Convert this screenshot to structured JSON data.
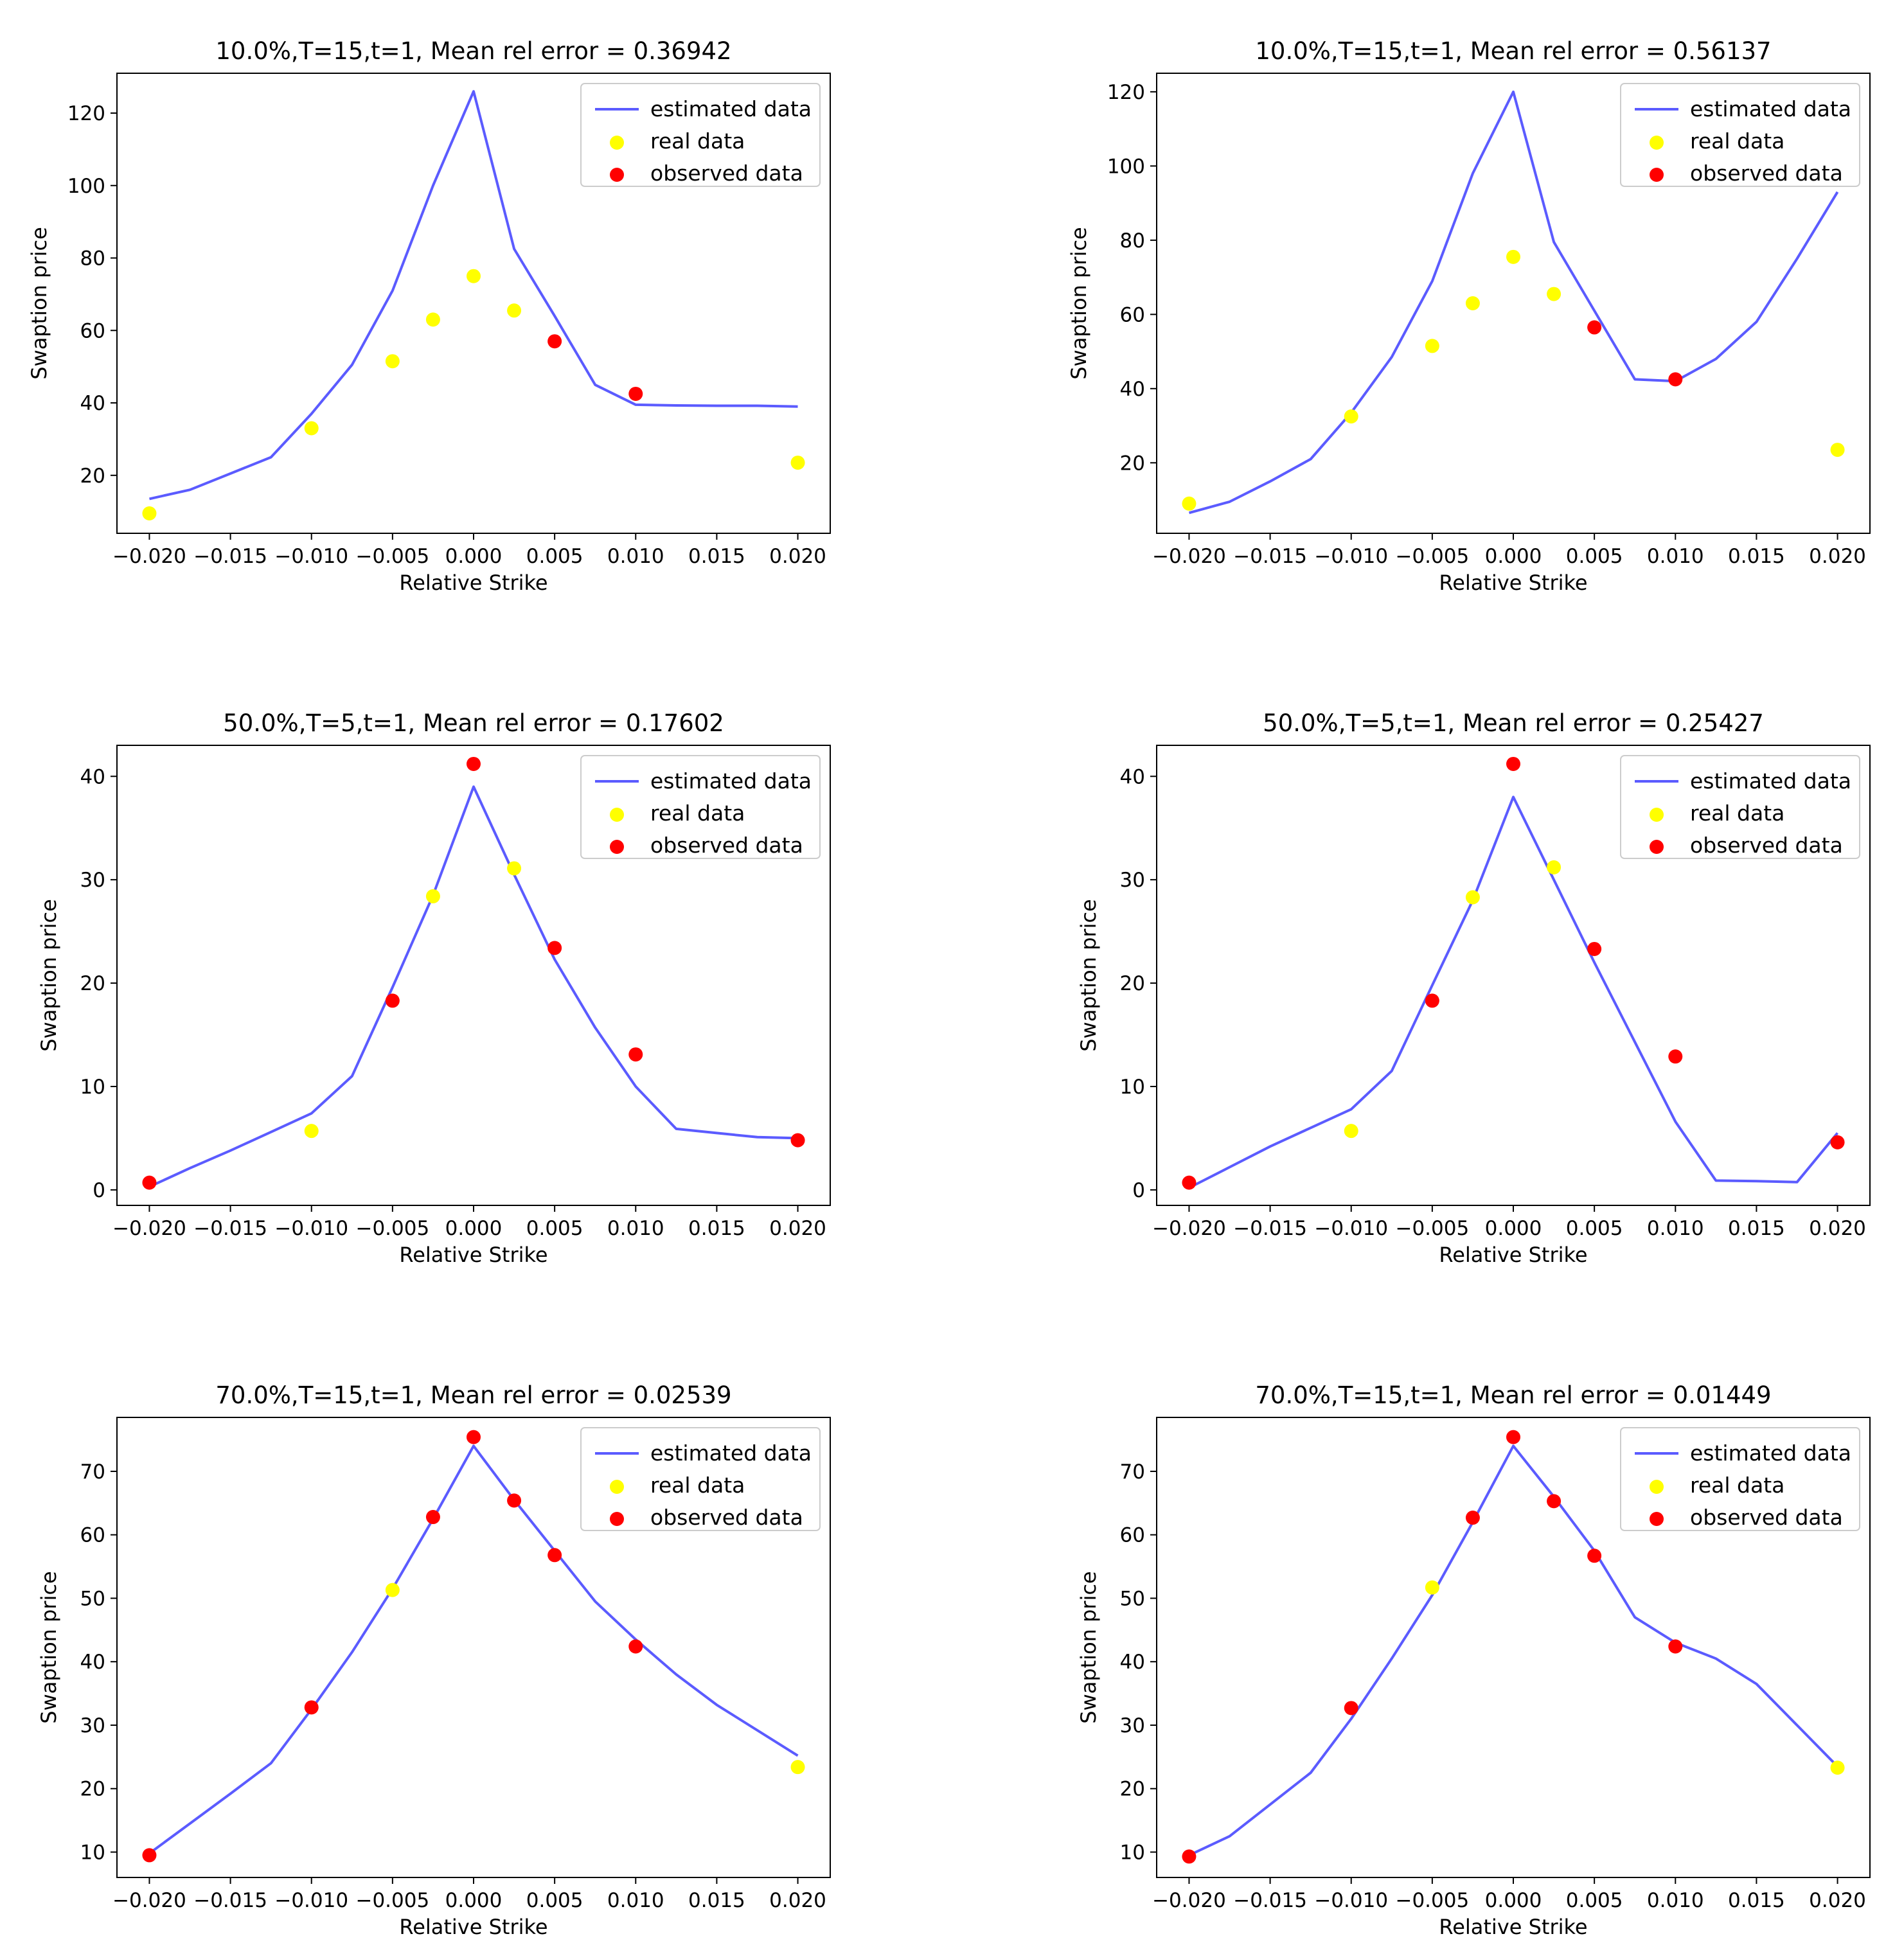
{
  "legend": {
    "estimated": "estimated data",
    "real": "real data",
    "observed": "observed data",
    "location": "upper-right"
  },
  "colors": {
    "line": "#5b5bff",
    "real": "#ffff00",
    "observed": "#ff0000"
  },
  "chart_data": [
    {
      "type": "line+scatter",
      "title": "10.0%,T=15,t=1, Mean rel error = 0.36942",
      "xlabel": "Relative Strike",
      "ylabel": "Swaption price",
      "xlim": [
        -0.022,
        0.022
      ],
      "ylim": [
        4,
        131
      ],
      "yticks": [
        20,
        40,
        60,
        80,
        100,
        120
      ],
      "xticks": [
        -0.02,
        -0.015,
        -0.01,
        -0.005,
        0.0,
        0.005,
        0.01,
        0.015,
        0.02
      ],
      "xtick_labels": [
        "−0.020",
        "−0.015",
        "−0.010",
        "−0.005",
        "0.000",
        "0.005",
        "0.010",
        "0.015",
        "0.020"
      ],
      "ytick_labels": [
        "20",
        "40",
        "60",
        "80",
        "100",
        "120"
      ],
      "estimated": {
        "x": [
          -0.02,
          -0.0175,
          -0.015,
          -0.0125,
          -0.01,
          -0.0075,
          -0.005,
          -0.0025,
          0.0,
          0.0025,
          0.005,
          0.0075,
          0.01,
          0.0125,
          0.015,
          0.0175,
          0.02
        ],
        "y": [
          13.5,
          16,
          20.5,
          25,
          37,
          50.5,
          71,
          100,
          126,
          82.5,
          64,
          45,
          39.5,
          39.3,
          39.2,
          39.2,
          39
        ]
      },
      "real": {
        "x": [
          -0.02,
          -0.01,
          -0.005,
          -0.0025,
          0.0,
          0.0025,
          0.02
        ],
        "y": [
          9.5,
          33,
          51.5,
          63,
          75,
          65.5,
          23.5
        ]
      },
      "observed": {
        "x": [
          0.005,
          0.01
        ],
        "y": [
          57,
          42.5
        ]
      }
    },
    {
      "type": "line+scatter",
      "title": "10.0%,T=15,t=1, Mean rel error = 0.56137",
      "xlabel": "Relative Strike",
      "ylabel": "Swaption price",
      "xlim": [
        -0.022,
        0.022
      ],
      "ylim": [
        1,
        125
      ],
      "yticks": [
        20,
        40,
        60,
        80,
        100,
        120
      ],
      "xticks": [
        -0.02,
        -0.015,
        -0.01,
        -0.005,
        0.0,
        0.005,
        0.01,
        0.015,
        0.02
      ],
      "xtick_labels": [
        "−0.020",
        "−0.015",
        "−0.010",
        "−0.005",
        "0.000",
        "0.005",
        "0.010",
        "0.015",
        "0.020"
      ],
      "ytick_labels": [
        "20",
        "40",
        "60",
        "80",
        "100",
        "120"
      ],
      "estimated": {
        "x": [
          -0.02,
          -0.0175,
          -0.015,
          -0.0125,
          -0.01,
          -0.0075,
          -0.005,
          -0.0025,
          0.0,
          0.0025,
          0.005,
          0.0075,
          0.01,
          0.0125,
          0.015,
          0.0175,
          0.02
        ],
        "y": [
          6.5,
          9.5,
          15,
          21,
          33.5,
          48.5,
          69,
          98,
          120,
          79.5,
          61,
          42.5,
          42,
          48,
          58,
          75,
          93
        ]
      },
      "real": {
        "x": [
          -0.02,
          -0.01,
          -0.005,
          -0.0025,
          0.0,
          0.0025,
          0.02
        ],
        "y": [
          9,
          32.5,
          51.5,
          63,
          75.5,
          65.5,
          23.5
        ]
      },
      "observed": {
        "x": [
          0.005,
          0.01
        ],
        "y": [
          56.5,
          42.5
        ]
      }
    },
    {
      "type": "line+scatter",
      "title": "50.0%,T=5,t=1, Mean rel error = 0.17602",
      "xlabel": "Relative Strike",
      "ylabel": "Swaption price",
      "xlim": [
        -0.022,
        0.022
      ],
      "ylim": [
        -1.5,
        43
      ],
      "yticks": [
        0,
        10,
        20,
        30,
        40
      ],
      "xticks": [
        -0.02,
        -0.015,
        -0.01,
        -0.005,
        0.0,
        0.005,
        0.01,
        0.015,
        0.02
      ],
      "xtick_labels": [
        "−0.020",
        "−0.015",
        "−0.010",
        "−0.005",
        "0.000",
        "0.005",
        "0.010",
        "0.015",
        "0.020"
      ],
      "ytick_labels": [
        "0",
        "10",
        "20",
        "30",
        "40"
      ],
      "estimated": {
        "x": [
          -0.02,
          -0.0175,
          -0.015,
          -0.0125,
          -0.01,
          -0.0075,
          -0.005,
          -0.0025,
          0.0,
          0.0025,
          0.005,
          0.0075,
          0.01,
          0.0125,
          0.015,
          0.0175,
          0.02
        ],
        "y": [
          0.3,
          2.1,
          3.8,
          5.6,
          7.4,
          11,
          19.6,
          28.5,
          39,
          30.5,
          22.3,
          15.7,
          10,
          5.9,
          5.5,
          5.1,
          5
        ]
      },
      "real": {
        "x": [
          -0.01,
          -0.0025,
          0.0025
        ],
        "y": [
          5.7,
          28.4,
          31.1
        ]
      },
      "observed": {
        "x": [
          -0.02,
          -0.005,
          0.0,
          0.005,
          0.01,
          0.02
        ],
        "y": [
          0.7,
          18.3,
          41.2,
          23.4,
          13.1,
          4.8
        ]
      }
    },
    {
      "type": "line+scatter",
      "title": "50.0%,T=5,t=1, Mean rel error = 0.25427",
      "xlabel": "Relative Strike",
      "ylabel": "Swaption price",
      "xlim": [
        -0.022,
        0.022
      ],
      "ylim": [
        -1.5,
        43
      ],
      "yticks": [
        0,
        10,
        20,
        30,
        40
      ],
      "xticks": [
        -0.02,
        -0.015,
        -0.01,
        -0.005,
        0.0,
        0.005,
        0.01,
        0.015,
        0.02
      ],
      "xtick_labels": [
        "−0.020",
        "−0.015",
        "−0.010",
        "−0.005",
        "0.000",
        "0.005",
        "0.010",
        "0.015",
        "0.020"
      ],
      "ytick_labels": [
        "0",
        "10",
        "20",
        "30",
        "40"
      ],
      "estimated": {
        "x": [
          -0.02,
          -0.0175,
          -0.015,
          -0.0125,
          -0.01,
          -0.0075,
          -0.005,
          -0.0025,
          0.0,
          0.0025,
          0.005,
          0.0075,
          0.01,
          0.0125,
          0.015,
          0.0175,
          0.02
        ],
        "y": [
          0.2,
          2.2,
          4.2,
          6,
          7.8,
          11.5,
          19.8,
          28,
          38,
          30,
          22,
          14.3,
          6.6,
          0.9,
          0.85,
          0.75,
          5.5
        ]
      },
      "real": {
        "x": [
          -0.01,
          -0.0025,
          0.0025
        ],
        "y": [
          5.7,
          28.3,
          31.2
        ]
      },
      "observed": {
        "x": [
          -0.02,
          -0.005,
          0.0,
          0.005,
          0.01,
          0.02
        ],
        "y": [
          0.7,
          18.3,
          41.2,
          23.3,
          12.9,
          4.6
        ]
      }
    },
    {
      "type": "line+scatter",
      "title": "70.0%,T=15,t=1, Mean rel error = 0.02539",
      "xlabel": "Relative Strike",
      "ylabel": "Swaption price",
      "xlim": [
        -0.022,
        0.022
      ],
      "ylim": [
        6,
        78.5
      ],
      "yticks": [
        10,
        20,
        30,
        40,
        50,
        60,
        70
      ],
      "xticks": [
        -0.02,
        -0.015,
        -0.01,
        -0.005,
        0.0,
        0.005,
        0.01,
        0.015,
        0.02
      ],
      "xtick_labels": [
        "−0.020",
        "−0.015",
        "−0.010",
        "−0.005",
        "0.000",
        "0.005",
        "0.010",
        "0.015",
        "0.020"
      ],
      "ytick_labels": [
        "10",
        "20",
        "30",
        "40",
        "50",
        "60",
        "70"
      ],
      "estimated": {
        "x": [
          -0.02,
          -0.0175,
          -0.015,
          -0.0125,
          -0.01,
          -0.0075,
          -0.005,
          -0.0025,
          0.0,
          0.0025,
          0.005,
          0.0075,
          0.01,
          0.0125,
          0.015,
          0.0175,
          0.02
        ],
        "y": [
          9.8,
          14.5,
          19.2,
          24,
          32.5,
          41.5,
          51.5,
          62.5,
          74,
          65.5,
          57.5,
          49.5,
          43.5,
          38,
          33.2,
          29.2,
          25.2
        ]
      },
      "real": {
        "x": [
          -0.005,
          0.02
        ],
        "y": [
          51.3,
          23.4
        ]
      },
      "observed": {
        "x": [
          -0.02,
          -0.01,
          -0.0025,
          0.0,
          0.0025,
          0.005,
          0.01
        ],
        "y": [
          9.5,
          32.8,
          62.8,
          75.4,
          65.4,
          56.8,
          42.4
        ]
      }
    },
    {
      "type": "line+scatter",
      "title": "70.0%,T=15,t=1, Mean rel error = 0.01449",
      "xlabel": "Relative Strike",
      "ylabel": "Swaption price",
      "xlim": [
        -0.022,
        0.022
      ],
      "ylim": [
        6,
        78.5
      ],
      "yticks": [
        10,
        20,
        30,
        40,
        50,
        60,
        70
      ],
      "xticks": [
        -0.02,
        -0.015,
        -0.01,
        -0.005,
        0.0,
        0.005,
        0.01,
        0.015,
        0.02
      ],
      "xtick_labels": [
        "−0.020",
        "−0.015",
        "−0.010",
        "−0.005",
        "0.000",
        "0.005",
        "0.010",
        "0.015",
        "0.020"
      ],
      "ytick_labels": [
        "10",
        "20",
        "30",
        "40",
        "50",
        "60",
        "70"
      ],
      "estimated": {
        "x": [
          -0.02,
          -0.0175,
          -0.015,
          -0.0125,
          -0.01,
          -0.0075,
          -0.005,
          -0.0025,
          0.0,
          0.0025,
          0.005,
          0.0075,
          0.01,
          0.0125,
          0.015,
          0.0175,
          0.02
        ],
        "y": [
          9.5,
          12.5,
          17.5,
          22.5,
          31,
          40.5,
          50.5,
          62,
          74,
          66,
          57.5,
          47,
          43,
          40.5,
          36.5,
          30,
          23.5
        ]
      },
      "real": {
        "x": [
          -0.005,
          0.02
        ],
        "y": [
          51.7,
          23.3
        ]
      },
      "observed": {
        "x": [
          -0.02,
          -0.01,
          -0.0025,
          0.0,
          0.0025,
          0.005,
          0.01
        ],
        "y": [
          9.3,
          32.7,
          62.7,
          75.4,
          65.3,
          56.7,
          42.4
        ]
      }
    }
  ]
}
